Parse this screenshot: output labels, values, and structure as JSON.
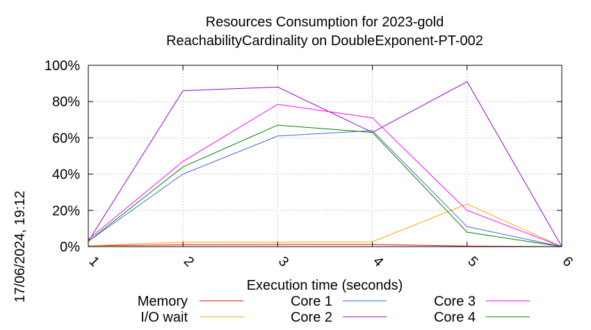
{
  "chart_data": {
    "type": "line",
    "title": "Resources Consumption for 2023-gold",
    "subtitle": "ReachabilityCardinality on DoubleExponent-PT-002",
    "xlabel": "Execution time (seconds)",
    "ylabel": "",
    "side_label": "17/06/2024, 19:12",
    "xlim": [
      1,
      6
    ],
    "ylim": [
      0,
      100
    ],
    "x": [
      1,
      2,
      3,
      4,
      5,
      6
    ],
    "x_tick_labels": [
      "1",
      "2",
      "3",
      "4",
      "5",
      "6"
    ],
    "y_ticks": [
      0,
      20,
      40,
      60,
      80,
      100
    ],
    "y_tick_labels": [
      "0%",
      "20%",
      "40%",
      "60%",
      "80%",
      "100%"
    ],
    "grid": true,
    "legend_position": "bottom",
    "series": [
      {
        "name": "Memory",
        "color": "#ff0000",
        "values": [
          0.5,
          1.0,
          1.2,
          1.2,
          0.3,
          0
        ]
      },
      {
        "name": "I/O wait",
        "color": "#ffa500",
        "values": [
          0.5,
          2.5,
          2.5,
          2.7,
          23.5,
          0
        ]
      },
      {
        "name": "Core 1",
        "color": "#4169e1",
        "values": [
          3,
          40,
          61,
          64,
          11,
          0
        ]
      },
      {
        "name": "Core 2",
        "color": "#9400d3",
        "values": [
          3,
          86,
          88,
          63,
          91,
          0
        ]
      },
      {
        "name": "Core 3",
        "color": "#ff00ff",
        "values": [
          4,
          47,
          78.5,
          71,
          20,
          0
        ]
      },
      {
        "name": "Core 4",
        "color": "#008000",
        "values": [
          3,
          44,
          67,
          63,
          8,
          0
        ]
      }
    ]
  }
}
